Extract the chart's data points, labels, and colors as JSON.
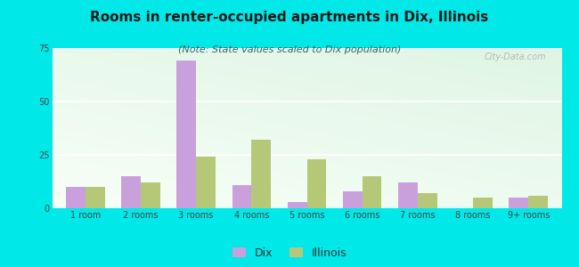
{
  "title": "Rooms in renter-occupied apartments in Dix, Illinois",
  "subtitle": "(Note: State values scaled to Dix population)",
  "categories": [
    "1 room",
    "2 rooms",
    "3 rooms",
    "4 rooms",
    "5 rooms",
    "6 rooms",
    "7 rooms",
    "8 rooms",
    "9+ rooms"
  ],
  "dix_values": [
    10,
    15,
    69,
    11,
    3,
    8,
    12,
    0,
    5
  ],
  "illinois_values": [
    10,
    12,
    24,
    32,
    23,
    15,
    7,
    5,
    6
  ],
  "dix_color": "#c9a0dc",
  "illinois_color": "#b5c878",
  "background_outer": "#00e8e8",
  "ylim": [
    0,
    75
  ],
  "yticks": [
    0,
    25,
    50,
    75
  ],
  "bar_width": 0.35,
  "title_fontsize": 11,
  "subtitle_fontsize": 8,
  "tick_fontsize": 7,
  "legend_fontsize": 9,
  "watermark_text": "City-Data.com"
}
